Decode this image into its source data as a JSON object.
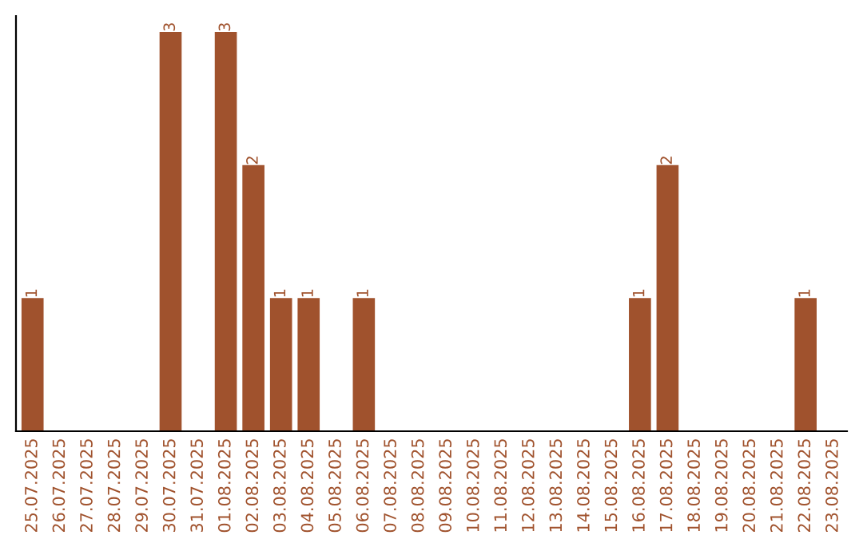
{
  "chart_data": {
    "type": "bar",
    "categories": [
      "25.07.2025",
      "26.07.2025",
      "27.07.2025",
      "28.07.2025",
      "29.07.2025",
      "30.07.2025",
      "31.07.2025",
      "01.08.2025",
      "02.08.2025",
      "03.08.2025",
      "04.08.2025",
      "05.08.2025",
      "06.08.2025",
      "07.08.2025",
      "08.08.2025",
      "09.08.2025",
      "10.08.2025",
      "11.08.2025",
      "12.08.2025",
      "13.08.2025",
      "14.08.2025",
      "15.08.2025",
      "16.08.2025",
      "17.08.2025",
      "18.08.2025",
      "19.08.2025",
      "20.08.2025",
      "21.08.2025",
      "22.08.2025",
      "23.08.2025"
    ],
    "values": [
      1,
      0,
      0,
      0,
      0,
      3,
      0,
      3,
      2,
      1,
      1,
      0,
      1,
      0,
      0,
      0,
      0,
      0,
      0,
      0,
      0,
      0,
      1,
      2,
      0,
      0,
      0,
      0,
      1,
      0
    ],
    "value_labels": [
      "1",
      null,
      null,
      null,
      null,
      "3",
      null,
      "3",
      "2",
      "1",
      "1",
      null,
      "1",
      null,
      null,
      null,
      null,
      null,
      null,
      null,
      null,
      null,
      "1",
      "2",
      null,
      null,
      null,
      null,
      "1",
      null
    ],
    "color": "#a0522d",
    "tick_labels": "x",
    "grid": false,
    "legend": false
  }
}
